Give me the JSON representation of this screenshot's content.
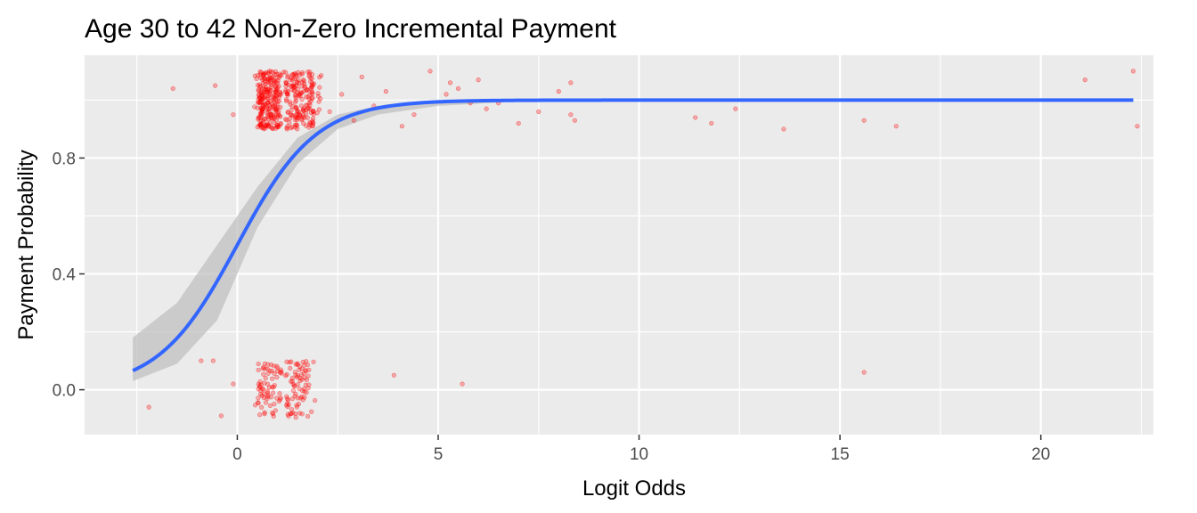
{
  "chart_data": {
    "type": "scatter",
    "title": "Age 30 to 42 Non-Zero Incremental Payment",
    "xlabel": "Logit Odds",
    "ylabel": "Payment Probability",
    "xlim": [
      -3.8,
      22.8
    ],
    "ylim": [
      -0.155,
      1.155
    ],
    "x_ticks": [
      0,
      5,
      10,
      15,
      20
    ],
    "x_tick_labels": [
      "0",
      "5",
      "10",
      "15",
      "20"
    ],
    "y_ticks": [
      0.0,
      0.4,
      0.8
    ],
    "y_tick_labels": [
      "0.0",
      "0.4",
      "0.8"
    ],
    "x_minor_ticks": [
      -2.5,
      2.5,
      7.5,
      12.5,
      17.5,
      22.5
    ],
    "y_minor_ticks": [
      0.2,
      0.6,
      1.0
    ],
    "grid": true,
    "legend": "none",
    "colors": {
      "panel_background": "#ebebeb",
      "grid": "#ffffff",
      "points": "#ff0000",
      "fit_line": "#3366ff",
      "confidence_band": "#bdbdbd"
    },
    "points_outcome_1": [
      [
        -1.6,
        1.04
      ],
      [
        -0.55,
        1.05
      ],
      [
        -0.1,
        0.95
      ],
      [
        2.3,
        0.96
      ],
      [
        2.6,
        1.02
      ],
      [
        2.9,
        0.93
      ],
      [
        3.1,
        1.08
      ],
      [
        3.4,
        0.98
      ],
      [
        3.7,
        1.03
      ],
      [
        4.1,
        0.91
      ],
      [
        4.4,
        0.95
      ],
      [
        4.8,
        1.1
      ],
      [
        5.2,
        1.02
      ],
      [
        5.3,
        1.06
      ],
      [
        5.5,
        1.04
      ],
      [
        5.8,
        0.99
      ],
      [
        6.0,
        1.07
      ],
      [
        6.2,
        0.97
      ],
      [
        6.5,
        0.99
      ],
      [
        7.0,
        0.92
      ],
      [
        7.5,
        0.96
      ],
      [
        8.0,
        1.03
      ],
      [
        8.3,
        1.06
      ],
      [
        8.4,
        0.93
      ],
      [
        8.3,
        0.95
      ],
      [
        11.4,
        0.94
      ],
      [
        11.8,
        0.92
      ],
      [
        12.4,
        0.97
      ],
      [
        13.6,
        0.9
      ],
      [
        15.6,
        0.93
      ],
      [
        16.4,
        0.91
      ],
      [
        21.1,
        1.07
      ],
      [
        22.3,
        1.1
      ],
      [
        22.4,
        0.91
      ]
    ],
    "dense_cluster_1": {
      "x_range": [
        0.4,
        2.1
      ],
      "y_range": [
        0.9,
        1.1
      ],
      "count": 420
    },
    "points_outcome_0": [
      [
        -2.2,
        -0.06
      ],
      [
        -0.9,
        0.1
      ],
      [
        -0.6,
        0.1
      ],
      [
        -0.4,
        -0.09
      ],
      [
        -0.1,
        0.02
      ],
      [
        3.9,
        0.05
      ],
      [
        5.6,
        0.02
      ],
      [
        15.6,
        0.06
      ]
    ],
    "dense_cluster_0": {
      "x_range": [
        0.4,
        2.0
      ],
      "y_range": [
        -0.1,
        0.1
      ],
      "count": 150
    },
    "fit": {
      "method": "glm binomial",
      "x_start": -2.6,
      "x_end": 22.3,
      "intercept": 0.0,
      "slope": 1.02
    },
    "confidence_band": [
      [
        -2.6,
        0.03,
        0.18
      ],
      [
        -1.5,
        0.09,
        0.3
      ],
      [
        -0.5,
        0.24,
        0.5
      ],
      [
        0.5,
        0.56,
        0.7
      ],
      [
        1.5,
        0.78,
        0.87
      ],
      [
        2.5,
        0.9,
        0.95
      ],
      [
        3.5,
        0.95,
        0.98
      ],
      [
        5.0,
        0.98,
        1.0
      ],
      [
        7.0,
        0.995,
        1.0
      ],
      [
        22.3,
        1.0,
        1.0
      ]
    ]
  }
}
